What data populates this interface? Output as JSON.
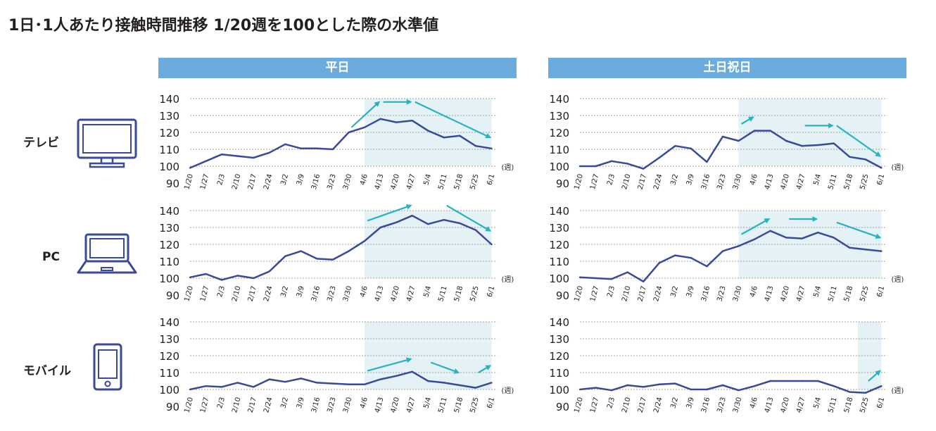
{
  "title": "1日･1人あたり接触時間推移 1/20週を100とした際の水準値",
  "columns": [
    "平日",
    "土日祝日"
  ],
  "devices": [
    {
      "label": "テレビ",
      "icon": "tv-icon"
    },
    {
      "label": "PC",
      "icon": "laptop-icon"
    },
    {
      "label": "モバイル",
      "icon": "smartphone-icon"
    }
  ],
  "colors": {
    "line": "#3a4a9b",
    "arrow": "#29b3c0",
    "shade": "#e4f2f5",
    "header": "#6aace0",
    "grid": "#a0a0a0",
    "icon": "#3a4a9b"
  },
  "chart_data": [
    {
      "type": "line",
      "panel": "平日 / テレビ",
      "categories": [
        "1/20",
        "1/27",
        "2/3",
        "2/10",
        "2/17",
        "2/24",
        "3/2",
        "3/9",
        "3/16",
        "3/23",
        "3/30",
        "4/6",
        "4/13",
        "4/20",
        "4/27",
        "5/4",
        "5/11",
        "5/18",
        "5/25",
        "6/1"
      ],
      "y_ticks": [
        140,
        130,
        120,
        110,
        100,
        90
      ],
      "ylim": [
        90,
        140
      ],
      "x_unit": "(週)",
      "values": [
        99,
        103,
        107,
        106,
        105,
        108,
        113,
        110.5,
        110.5,
        110,
        120,
        123,
        128,
        126,
        127,
        121,
        117,
        118,
        112,
        110.5
      ],
      "shade_from": "4/6",
      "shade_to": "6/1",
      "arrows": [
        {
          "from": [
            "3/30",
            123
          ],
          "to": [
            "4/13",
            138
          ]
        },
        {
          "from": [
            "4/13",
            138
          ],
          "to": [
            "4/27",
            138
          ]
        },
        {
          "from": [
            "4/27",
            138
          ],
          "to": [
            "6/1",
            117
          ]
        }
      ]
    },
    {
      "type": "line",
      "panel": "土日祝日 / テレビ",
      "categories": [
        "1/20",
        "1/27",
        "2/3",
        "2/10",
        "2/17",
        "2/24",
        "3/2",
        "3/9",
        "3/16",
        "3/23",
        "3/30",
        "4/6",
        "4/13",
        "4/20",
        "4/27",
        "5/4",
        "5/11",
        "5/18",
        "5/25",
        "6/1"
      ],
      "y_ticks": [
        140,
        130,
        120,
        110,
        100,
        90
      ],
      "ylim": [
        90,
        140
      ],
      "x_unit": "(週)",
      "values": [
        100,
        100,
        103,
        101.5,
        98.5,
        105,
        112,
        110.5,
        102.5,
        117.5,
        115,
        121,
        121,
        115,
        112,
        112.5,
        113.5,
        105.5,
        104,
        99
      ],
      "shade_from": "3/30",
      "shade_to": "6/1",
      "arrows": [
        {
          "from": [
            "3/30",
            125
          ],
          "to": [
            "4/6",
            129
          ]
        },
        {
          "from": [
            "4/27",
            124
          ],
          "to": [
            "5/11",
            124
          ]
        },
        {
          "from": [
            "5/11",
            124
          ],
          "to": [
            "6/1",
            106
          ]
        }
      ]
    },
    {
      "type": "line",
      "panel": "平日 / PC",
      "categories": [
        "1/20",
        "1/27",
        "2/3",
        "2/10",
        "2/17",
        "2/24",
        "3/2",
        "3/9",
        "3/16",
        "3/23",
        "3/30",
        "4/6",
        "4/13",
        "4/20",
        "4/27",
        "5/4",
        "5/11",
        "5/18",
        "5/25",
        "6/1"
      ],
      "y_ticks": [
        140,
        130,
        120,
        110,
        100,
        90
      ],
      "ylim": [
        90,
        140
      ],
      "x_unit": "(週)",
      "values": [
        100.5,
        102.5,
        99,
        101.5,
        100,
        104,
        113,
        116,
        111.5,
        111,
        116,
        122,
        130,
        133,
        137,
        132,
        134.5,
        132.5,
        128.5,
        120
      ],
      "shade_from": "4/6",
      "shade_to": "6/1",
      "arrows": [
        {
          "from": [
            "4/6",
            134
          ],
          "to": [
            "4/27",
            143
          ]
        },
        {
          "from": [
            "5/11",
            143
          ],
          "to": [
            "6/1",
            128
          ]
        }
      ]
    },
    {
      "type": "line",
      "panel": "土日祝日 / PC",
      "categories": [
        "1/20",
        "1/27",
        "2/3",
        "2/10",
        "2/17",
        "2/24",
        "3/2",
        "3/9",
        "3/16",
        "3/23",
        "3/30",
        "4/6",
        "4/13",
        "4/20",
        "4/27",
        "5/4",
        "5/11",
        "5/18",
        "5/25",
        "6/1"
      ],
      "y_ticks": [
        140,
        130,
        120,
        110,
        100,
        90
      ],
      "ylim": [
        90,
        140
      ],
      "x_unit": "(週)",
      "values": [
        100.5,
        100,
        99.5,
        103.5,
        98,
        109,
        113.5,
        112,
        107,
        116,
        119,
        123,
        128,
        124,
        123.5,
        127,
        124,
        118,
        117,
        116
      ],
      "shade_from": "3/30",
      "shade_to": "6/1",
      "arrows": [
        {
          "from": [
            "3/30",
            126
          ],
          "to": [
            "4/13",
            135
          ]
        },
        {
          "from": [
            "4/20",
            135
          ],
          "to": [
            "5/4",
            135
          ]
        },
        {
          "from": [
            "5/11",
            133
          ],
          "to": [
            "6/1",
            124
          ]
        }
      ]
    },
    {
      "type": "line",
      "panel": "平日 / モバイル",
      "categories": [
        "1/20",
        "1/27",
        "2/3",
        "2/10",
        "2/17",
        "2/24",
        "3/2",
        "3/9",
        "3/16",
        "3/23",
        "3/30",
        "4/6",
        "4/13",
        "4/20",
        "4/27",
        "5/4",
        "5/11",
        "5/18",
        "5/25",
        "6/1"
      ],
      "y_ticks": [
        140,
        130,
        120,
        110,
        100,
        90
      ],
      "ylim": [
        90,
        140
      ],
      "x_unit": "(週)",
      "values": [
        100,
        102,
        101.5,
        104,
        101.5,
        106,
        104.5,
        106.5,
        104,
        103.5,
        103,
        103,
        106,
        108,
        110.5,
        105,
        104,
        102.5,
        101,
        104
      ],
      "shade_from": "4/6",
      "shade_to": "6/1",
      "arrows": [
        {
          "from": [
            "4/6",
            111
          ],
          "to": [
            "4/27",
            118
          ]
        },
        {
          "from": [
            "5/4",
            116
          ],
          "to": [
            "5/18",
            110
          ]
        },
        {
          "from": [
            "5/25",
            110
          ],
          "to": [
            "6/1",
            114
          ]
        }
      ]
    },
    {
      "type": "line",
      "panel": "土日祝日 / モバイル",
      "categories": [
        "1/20",
        "1/27",
        "2/3",
        "2/10",
        "2/17",
        "2/24",
        "3/2",
        "3/9",
        "3/16",
        "3/23",
        "3/30",
        "4/6",
        "4/13",
        "4/20",
        "4/27",
        "5/4",
        "5/11",
        "5/18",
        "5/25",
        "6/1"
      ],
      "y_ticks": [
        140,
        130,
        120,
        110,
        100,
        90
      ],
      "ylim": [
        90,
        140
      ],
      "x_unit": "(週)",
      "values": [
        100,
        101,
        99.5,
        102.5,
        101.5,
        103,
        103.5,
        100,
        100,
        102.5,
        99.5,
        102,
        105,
        105,
        105,
        105,
        102,
        98.5,
        98,
        102
      ],
      "shade_from": "5/25",
      "shade_to": "6/1",
      "arrows": [
        {
          "from": [
            "5/25",
            105
          ],
          "to": [
            "6/1",
            111
          ]
        }
      ]
    }
  ]
}
